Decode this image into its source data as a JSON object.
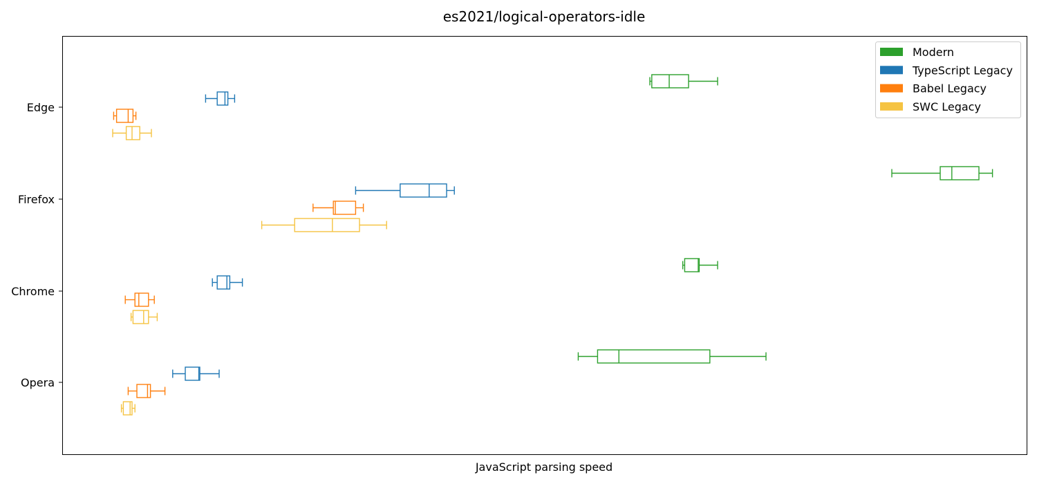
{
  "chart_data": {
    "type": "boxplot",
    "orientation": "horizontal",
    "title": "es2021/logical-operators-idle",
    "xlabel": "JavaScript parsing speed",
    "ylabel": "",
    "x_ticks_shown": false,
    "xlim": [
      0,
      100
    ],
    "grid": false,
    "legend_position": "top-right",
    "categories": [
      "Edge",
      "Firefox",
      "Chrome",
      "Opera"
    ],
    "series": [
      {
        "name": "Modern",
        "color": "#2ca02c",
        "boxes": [
          {
            "category": "Edge",
            "whislo": 60.0,
            "q1": 60.2,
            "med": 62.0,
            "q3": 64.0,
            "whishi": 67.0
          },
          {
            "category": "Firefox",
            "whislo": 85.0,
            "q1": 90.0,
            "med": 91.2,
            "q3": 94.0,
            "whishi": 95.4
          },
          {
            "category": "Chrome",
            "whislo": 63.4,
            "q1": 63.6,
            "med": 65.0,
            "q3": 65.1,
            "whishi": 67.0
          },
          {
            "category": "Opera",
            "whislo": 52.6,
            "q1": 54.6,
            "med": 56.8,
            "q3": 66.2,
            "whishi": 72.0
          }
        ]
      },
      {
        "name": "TypeScript Legacy",
        "color": "#1f77b4",
        "boxes": [
          {
            "category": "Edge",
            "whislo": 14.1,
            "q1": 15.3,
            "med": 16.1,
            "q3": 16.4,
            "whishi": 17.1
          },
          {
            "category": "Firefox",
            "whislo": 29.6,
            "q1": 34.2,
            "med": 37.2,
            "q3": 39.0,
            "whishi": 39.8
          },
          {
            "category": "Chrome",
            "whislo": 14.8,
            "q1": 15.3,
            "med": 16.3,
            "q3": 16.6,
            "whishi": 17.9
          },
          {
            "category": "Opera",
            "whislo": 10.7,
            "q1": 12.0,
            "med": 13.4,
            "q3": 13.5,
            "whishi": 15.5
          }
        ]
      },
      {
        "name": "Babel Legacy",
        "color": "#ff7f0e",
        "boxes": [
          {
            "category": "Edge",
            "whislo": 4.6,
            "q1": 4.9,
            "med": 6.1,
            "q3": 6.6,
            "whishi": 6.9
          },
          {
            "category": "Firefox",
            "whislo": 25.2,
            "q1": 27.3,
            "med": 27.5,
            "q3": 29.6,
            "whishi": 30.4
          },
          {
            "category": "Chrome",
            "whislo": 5.8,
            "q1": 6.8,
            "med": 7.2,
            "q3": 8.2,
            "whishi": 8.8
          },
          {
            "category": "Opera",
            "whislo": 6.1,
            "q1": 7.0,
            "med": 8.1,
            "q3": 8.4,
            "whishi": 9.9
          }
        ]
      },
      {
        "name": "SWC Legacy",
        "color": "#f5c342",
        "boxes": [
          {
            "category": "Edge",
            "whislo": 4.5,
            "q1": 5.9,
            "med": 6.5,
            "q3": 7.3,
            "whishi": 8.5
          },
          {
            "category": "Firefox",
            "whislo": 19.9,
            "q1": 23.3,
            "med": 27.2,
            "q3": 30.0,
            "whishi": 32.8
          },
          {
            "category": "Chrome",
            "whislo": 6.4,
            "q1": 6.6,
            "med": 7.7,
            "q3": 8.2,
            "whishi": 9.1
          },
          {
            "category": "Opera",
            "whislo": 5.4,
            "q1": 5.6,
            "med": 6.3,
            "q3": 6.5,
            "whishi": 6.8
          }
        ]
      }
    ]
  }
}
